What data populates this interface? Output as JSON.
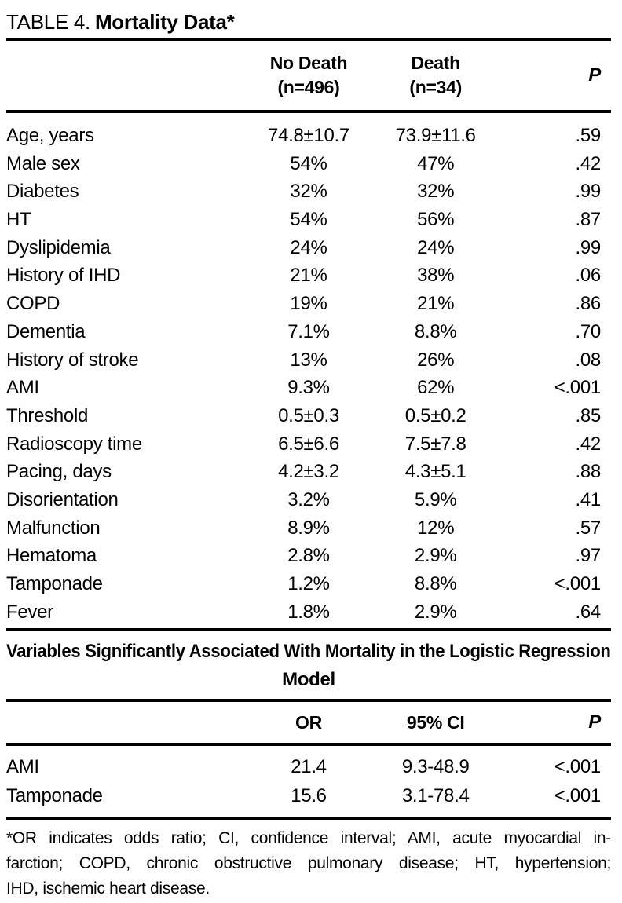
{
  "header": {
    "label": "TABLE 4.",
    "title": "Mortality Data*"
  },
  "table1": {
    "col_group1": {
      "line1": "No Death",
      "line2": "(n=496)"
    },
    "col_group2": {
      "line1": "Death",
      "line2": "(n=34)"
    },
    "p_label": "P",
    "rows": [
      {
        "label": "Age, years",
        "no_death": "74.8±10.7",
        "death": "73.9±11.6",
        "p": ".59"
      },
      {
        "label": "Male sex",
        "no_death": "54%",
        "death": "47%",
        "p": ".42"
      },
      {
        "label": "Diabetes",
        "no_death": "32%",
        "death": "32%",
        "p": ".99"
      },
      {
        "label": "HT",
        "no_death": "54%",
        "death": "56%",
        "p": ".87"
      },
      {
        "label": "Dyslipidemia",
        "no_death": "24%",
        "death": "24%",
        "p": ".99"
      },
      {
        "label": "History of IHD",
        "no_death": "21%",
        "death": "38%",
        "p": ".06"
      },
      {
        "label": "COPD",
        "no_death": "19%",
        "death": "21%",
        "p": ".86"
      },
      {
        "label": "Dementia",
        "no_death": "7.1%",
        "death": "8.8%",
        "p": ".70"
      },
      {
        "label": "History of stroke",
        "no_death": "13%",
        "death": "26%",
        "p": ".08"
      },
      {
        "label": "AMI",
        "no_death": "9.3%",
        "death": "62%",
        "p": "<.001"
      },
      {
        "label": "Threshold",
        "no_death": "0.5±0.3",
        "death": "0.5±0.2",
        "p": ".85"
      },
      {
        "label": "Radioscopy time",
        "no_death": "6.5±6.6",
        "death": "7.5±7.8",
        "p": ".42"
      },
      {
        "label": "Pacing, days",
        "no_death": "4.2±3.2",
        "death": "4.3±5.1",
        "p": ".88"
      },
      {
        "label": "Disorientation",
        "no_death": "3.2%",
        "death": "5.9%",
        "p": ".41"
      },
      {
        "label": "Malfunction",
        "no_death": "8.9%",
        "death": "12%",
        "p": ".57"
      },
      {
        "label": "Hematoma",
        "no_death": "2.8%",
        "death": "2.9%",
        "p": ".97"
      },
      {
        "label": "Tamponade",
        "no_death": "1.2%",
        "death": "8.8%",
        "p": "<.001"
      },
      {
        "label": "Fever",
        "no_death": "1.8%",
        "death": "2.9%",
        "p": ".64"
      }
    ]
  },
  "section": {
    "title_line1": "Variables Significantly Associated With Mortality in the Logistic Regression",
    "title_line2": "Model"
  },
  "table2": {
    "or_label": "OR",
    "ci_label": "95% CI",
    "p_label": "P",
    "rows": [
      {
        "label": "AMI",
        "or": "21.4",
        "ci": "9.3-48.9",
        "p": "<.001"
      },
      {
        "label": "Tamponade",
        "or": "15.6",
        "ci": "3.1-78.4",
        "p": "<.001"
      }
    ]
  },
  "footnote": {
    "lines": [
      "*OR indicates odds ratio; CI, confidence interval; AMI, acute myocardial in-",
      "farction; COPD, chronic obstructive pulmonary disease; HT, hypertension;",
      "IHD, ischemic heart disease."
    ]
  }
}
